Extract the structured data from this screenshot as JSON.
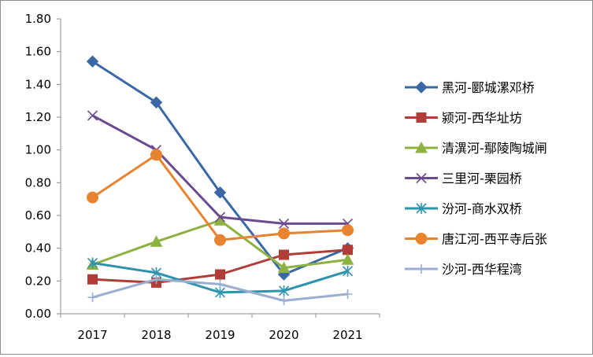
{
  "chart_data": {
    "type": "line",
    "title": "",
    "xlabel": "",
    "ylabel": "",
    "categories": [
      "2017",
      "2018",
      "2019",
      "2020",
      "2021"
    ],
    "ylim": [
      0,
      1.8
    ],
    "yticks": [
      "0.00",
      "0.20",
      "0.40",
      "0.60",
      "0.80",
      "1.00",
      "1.20",
      "1.40",
      "1.60",
      "1.80"
    ],
    "grid": false,
    "legend_position": "right",
    "series": [
      {
        "name": "黑河-郾城漯邓桥",
        "color": "#3a67a6",
        "marker": "diamond",
        "values": [
          1.54,
          1.29,
          0.74,
          0.24,
          0.4
        ]
      },
      {
        "name": "颍河-西华址坊",
        "color": "#b23c38",
        "marker": "square",
        "values": [
          0.21,
          0.19,
          0.24,
          0.36,
          0.39
        ]
      },
      {
        "name": "清潩河-鄢陵陶城闸",
        "color": "#8db242",
        "marker": "triangle",
        "values": [
          0.3,
          0.44,
          0.57,
          0.28,
          0.33
        ]
      },
      {
        "name": "三里河-栗园桥",
        "color": "#6b4a8f",
        "marker": "x",
        "values": [
          1.21,
          1.0,
          0.59,
          0.55,
          0.55
        ]
      },
      {
        "name": "汾河-商水双桥",
        "color": "#2f93ad",
        "marker": "asterisk",
        "values": [
          0.31,
          0.25,
          0.13,
          0.14,
          0.26
        ]
      },
      {
        "name": "唐江河-西平寺后张",
        "color": "#e8842f",
        "marker": "circle",
        "values": [
          0.71,
          0.97,
          0.45,
          0.49,
          0.51
        ]
      },
      {
        "name": "沙河-西华程湾",
        "color": "#9aaed0",
        "marker": "plus",
        "values": [
          0.1,
          0.21,
          0.18,
          0.08,
          0.12
        ]
      }
    ]
  }
}
